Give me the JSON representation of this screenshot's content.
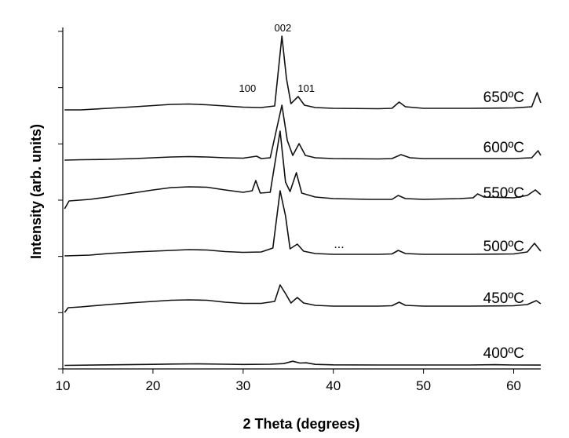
{
  "chart_data": {
    "type": "line",
    "title": "",
    "xlabel": "2 Theta (degrees)",
    "ylabel": "Intensity (arb. units)",
    "xlim": [
      10,
      63
    ],
    "x_ticks": [
      "10",
      "20",
      "30",
      "40",
      "50",
      "60"
    ],
    "y_tick_count": 6,
    "grid": false,
    "legend": "none",
    "peak_labels": [
      {
        "text": "002",
        "x": 34.4
      },
      {
        "text": "100",
        "x": 31.7
      },
      {
        "text": "101",
        "x": 36.3
      }
    ],
    "annotation": "...",
    "series": [
      {
        "name": "400ºC",
        "points": [
          [
            10.2,
            0.5
          ],
          [
            15,
            1.2
          ],
          [
            20,
            1.8
          ],
          [
            22,
            2.2
          ],
          [
            25,
            2.5
          ],
          [
            28,
            2.0
          ],
          [
            30,
            1.7
          ],
          [
            33,
            2.0
          ],
          [
            34.5,
            2.8
          ],
          [
            35.5,
            5.8
          ],
          [
            36.3,
            3.5
          ],
          [
            37,
            3.8
          ],
          [
            38,
            1.8
          ],
          [
            40,
            1.2
          ],
          [
            45,
            1.0
          ],
          [
            50,
            1.0
          ],
          [
            55,
            1.0
          ],
          [
            58,
            1.4
          ],
          [
            60,
            1.0
          ],
          [
            63,
            0.9
          ]
        ]
      },
      {
        "name": "450ºC",
        "points": [
          [
            10.2,
            -2
          ],
          [
            10.6,
            4
          ],
          [
            12,
            5
          ],
          [
            15,
            8
          ],
          [
            18,
            10.5
          ],
          [
            20,
            12
          ],
          [
            22,
            13.5
          ],
          [
            24,
            14
          ],
          [
            26,
            13.5
          ],
          [
            28,
            11
          ],
          [
            30,
            9.5
          ],
          [
            32,
            9.5
          ],
          [
            33.5,
            12
          ],
          [
            34.1,
            33
          ],
          [
            34.7,
            22
          ],
          [
            35.3,
            10
          ],
          [
            36,
            17
          ],
          [
            36.7,
            10
          ],
          [
            38,
            7
          ],
          [
            40,
            6
          ],
          [
            45,
            6
          ],
          [
            46.5,
            6.5
          ],
          [
            47.3,
            11
          ],
          [
            48,
            7
          ],
          [
            50,
            6
          ],
          [
            55,
            6
          ],
          [
            60,
            6.5
          ],
          [
            61.5,
            8
          ],
          [
            62.5,
            13
          ],
          [
            63,
            9
          ]
        ]
      },
      {
        "name": "500ºC",
        "points": [
          [
            10.2,
            4
          ],
          [
            13,
            5
          ],
          [
            15,
            7
          ],
          [
            18,
            9
          ],
          [
            20,
            10
          ],
          [
            22,
            11
          ],
          [
            24,
            12
          ],
          [
            26,
            11.5
          ],
          [
            28,
            9.5
          ],
          [
            30,
            8.5
          ],
          [
            32,
            9
          ],
          [
            33.3,
            14
          ],
          [
            34.1,
            87
          ],
          [
            34.7,
            55
          ],
          [
            35.2,
            13
          ],
          [
            36,
            19
          ],
          [
            36.7,
            10
          ],
          [
            38,
            7
          ],
          [
            40,
            6
          ],
          [
            45,
            6
          ],
          [
            46.5,
            6.5
          ],
          [
            47.2,
            11
          ],
          [
            48,
            7
          ],
          [
            50,
            6
          ],
          [
            55,
            6
          ],
          [
            60,
            6.5
          ],
          [
            61.5,
            9
          ],
          [
            62.3,
            20
          ],
          [
            63,
            10
          ]
        ]
      },
      {
        "name": "550ºC",
        "points": [
          [
            10.2,
            -4
          ],
          [
            10.7,
            6
          ],
          [
            13,
            8
          ],
          [
            15,
            11
          ],
          [
            16,
            13
          ],
          [
            18,
            16.5
          ],
          [
            20,
            20
          ],
          [
            22,
            23
          ],
          [
            24,
            24
          ],
          [
            26,
            23.5
          ],
          [
            28,
            20
          ],
          [
            30,
            17
          ],
          [
            31,
            19
          ],
          [
            31.4,
            32
          ],
          [
            31.9,
            16
          ],
          [
            33,
            17
          ],
          [
            34.1,
            95
          ],
          [
            34.7,
            30
          ],
          [
            35.2,
            18
          ],
          [
            35.9,
            42
          ],
          [
            36.5,
            16
          ],
          [
            38,
            11
          ],
          [
            40,
            9
          ],
          [
            44,
            8
          ],
          [
            46.5,
            8
          ],
          [
            47.2,
            13
          ],
          [
            48,
            9
          ],
          [
            50,
            8
          ],
          [
            54,
            9
          ],
          [
            55.5,
            10
          ],
          [
            56,
            15
          ],
          [
            56.7,
            11
          ],
          [
            60,
            10
          ],
          [
            61.5,
            13
          ],
          [
            62.4,
            20
          ],
          [
            63,
            14
          ]
        ]
      },
      {
        "name": "600ºC",
        "points": [
          [
            10.2,
            0
          ],
          [
            12,
            0.5
          ],
          [
            15,
            1
          ],
          [
            18,
            2
          ],
          [
            20,
            3
          ],
          [
            22,
            4
          ],
          [
            24,
            4.5
          ],
          [
            26,
            4
          ],
          [
            28,
            3
          ],
          [
            30,
            2.5
          ],
          [
            31.5,
            5
          ],
          [
            32,
            2
          ],
          [
            33,
            3
          ],
          [
            34.3,
            70
          ],
          [
            34.9,
            25
          ],
          [
            35.5,
            6
          ],
          [
            36.2,
            21
          ],
          [
            36.9,
            6
          ],
          [
            38,
            3
          ],
          [
            40,
            2
          ],
          [
            45,
            1.5
          ],
          [
            46.5,
            2
          ],
          [
            47.5,
            7
          ],
          [
            48.5,
            3
          ],
          [
            50,
            2
          ],
          [
            55,
            2
          ],
          [
            60,
            2
          ],
          [
            62,
            3
          ],
          [
            62.7,
            12
          ],
          [
            63,
            6
          ]
        ]
      },
      {
        "name": "650ºC",
        "points": [
          [
            10.2,
            0
          ],
          [
            12,
            0
          ],
          [
            15,
            2
          ],
          [
            18,
            4
          ],
          [
            20,
            5.5
          ],
          [
            22,
            7
          ],
          [
            24,
            7.5
          ],
          [
            26,
            6.5
          ],
          [
            28,
            5
          ],
          [
            30,
            3.5
          ],
          [
            32,
            3
          ],
          [
            33.5,
            5
          ],
          [
            34.3,
            94
          ],
          [
            34.8,
            40
          ],
          [
            35.3,
            8
          ],
          [
            36.1,
            17
          ],
          [
            36.8,
            6
          ],
          [
            38,
            3
          ],
          [
            40,
            2
          ],
          [
            45,
            1.5
          ],
          [
            46.5,
            2
          ],
          [
            47.3,
            10
          ],
          [
            48,
            4
          ],
          [
            50,
            2
          ],
          [
            55,
            2
          ],
          [
            60,
            2.5
          ],
          [
            62,
            4
          ],
          [
            62.6,
            22
          ],
          [
            63,
            9
          ]
        ]
      }
    ]
  }
}
